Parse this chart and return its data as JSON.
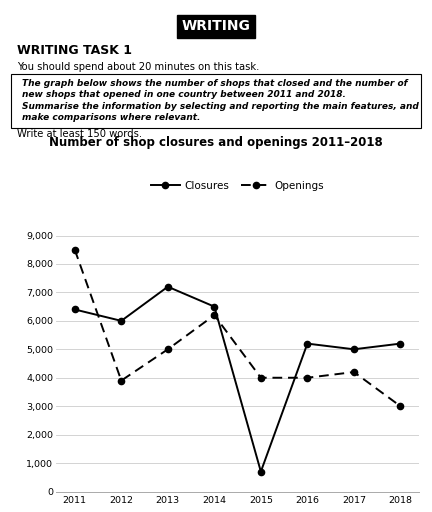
{
  "title": "Number of shop closures and openings 2011–2018",
  "years": [
    2011,
    2012,
    2013,
    2014,
    2015,
    2016,
    2017,
    2018
  ],
  "closures": [
    6400,
    6000,
    7200,
    6500,
    700,
    5200,
    5000,
    5200
  ],
  "openings": [
    8500,
    3900,
    5000,
    6200,
    4000,
    4000,
    4200,
    3000
  ],
  "ylim": [
    0,
    9000
  ],
  "yticks": [
    0,
    1000,
    2000,
    3000,
    4000,
    5000,
    6000,
    7000,
    8000,
    9000
  ],
  "ytick_labels": [
    "0",
    "1,000",
    "2,000",
    "3,000",
    "4,000",
    "5,000",
    "6,000",
    "7,000",
    "8,000",
    "9,000"
  ],
  "header_text": "WRITING",
  "task_label": "WRITING TASK 1",
  "instruction1": "You should spend about 20 minutes on this task.",
  "box_line1": "The graph below shows the number of shops that closed and the number of",
  "box_line2": "new shops that opened in one country between 2011 and 2018.",
  "box_line3": "Summarise the information by selecting and reporting the main features, and",
  "box_line4": "make comparisons where relevant.",
  "footer_text": "Write at least 150 words.",
  "line_color": "#000000",
  "bg_color": "#ffffff",
  "grid_color": "#cccccc"
}
